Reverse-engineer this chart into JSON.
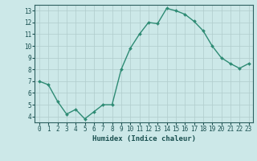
{
  "x": [
    0,
    1,
    2,
    3,
    4,
    5,
    6,
    7,
    8,
    9,
    10,
    11,
    12,
    13,
    14,
    15,
    16,
    17,
    18,
    19,
    20,
    21,
    22,
    23
  ],
  "y": [
    7.0,
    6.7,
    5.3,
    4.2,
    4.6,
    3.8,
    4.4,
    5.0,
    5.0,
    8.0,
    9.8,
    11.0,
    12.0,
    11.9,
    13.2,
    13.0,
    12.7,
    12.1,
    11.3,
    10.0,
    9.0,
    8.5,
    8.1,
    8.5
  ],
  "line_color": "#2e8b74",
  "marker": "D",
  "marker_size": 2.0,
  "bg_color": "#cce8e8",
  "grid_color": "#b0cccc",
  "xlabel": "Humidex (Indice chaleur)",
  "ylim": [
    3.5,
    13.5
  ],
  "xlim": [
    -0.5,
    23.5
  ],
  "yticks": [
    4,
    5,
    6,
    7,
    8,
    9,
    10,
    11,
    12,
    13
  ],
  "xticks": [
    0,
    1,
    2,
    3,
    4,
    5,
    6,
    7,
    8,
    9,
    10,
    11,
    12,
    13,
    14,
    15,
    16,
    17,
    18,
    19,
    20,
    21,
    22,
    23
  ],
  "xtick_labels": [
    "0",
    "1",
    "2",
    "3",
    "4",
    "5",
    "6",
    "7",
    "8",
    "9",
    "10",
    "11",
    "12",
    "13",
    "14",
    "15",
    "16",
    "17",
    "18",
    "19",
    "20",
    "21",
    "22",
    "23"
  ],
  "axis_color": "#2e6060",
  "tick_color": "#1a5050",
  "label_fontsize": 6.5,
  "tick_fontsize": 5.5,
  "linewidth": 1.0
}
